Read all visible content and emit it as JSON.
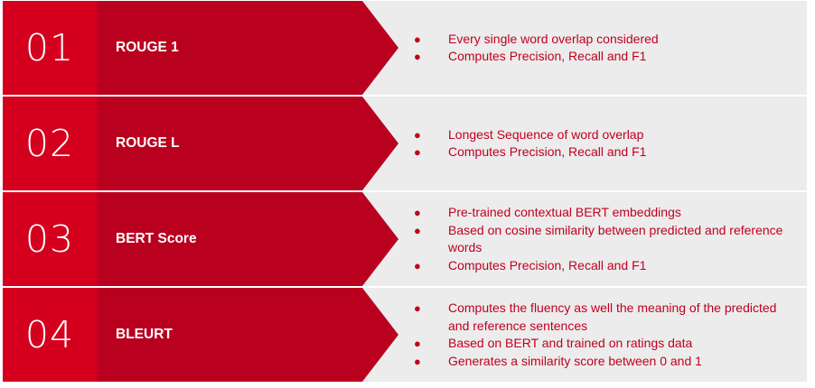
{
  "rows": [
    {
      "number": "01",
      "title": "ROUGE 1",
      "bullets": [
        "Every single word overlap considered",
        "Computes Precision, Recall and F1"
      ]
    },
    {
      "number": "02",
      "title": "ROUGE L",
      "bullets": [
        "Longest Sequence of word overlap",
        "Computes Precision, Recall and F1"
      ]
    },
    {
      "number": "03",
      "title": "BERT Score",
      "bullets": [
        "Pre-trained contextual BERT embeddings",
        "Based on cosine similarity between predicted and reference words",
        "Computes Precision, Recall and F1"
      ]
    },
    {
      "number": "04",
      "title": "BLEURT",
      "bullets": [
        "Computes the fluency as well the meaning of the predicted and reference sentences",
        "Based on BERT and trained on ratings data",
        "Generates a similarity score between 0 and 1"
      ]
    }
  ],
  "bullet_symbol": "●",
  "colors": {
    "number_box": "#d4001e",
    "arrow": "#b9001f",
    "panel": "#ececec",
    "bullet_text": "#c0001e"
  }
}
